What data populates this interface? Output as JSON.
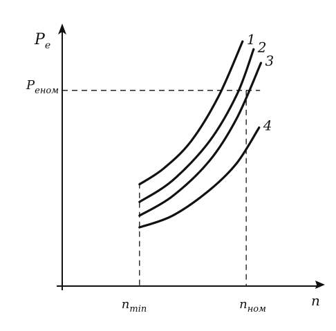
{
  "chart_data": {
    "type": "line",
    "title": "",
    "xlabel": "n",
    "ylabel": {
      "main": "P",
      "sub": "e"
    },
    "xlim": [
      0,
      1.3
    ],
    "ylim": [
      0,
      1.25
    ],
    "grid": false,
    "legend": "curve labels at right ends",
    "reference_lines": {
      "x_min": {
        "value": 0.42,
        "label_main": "n",
        "label_sub": "min"
      },
      "x_nom": {
        "value": 1.0,
        "label_main": "n",
        "label_sub": "ном"
      },
      "y_nom": {
        "value": 1.0,
        "label_main": "P",
        "label_sub": "eном"
      }
    },
    "series": [
      {
        "name": "1",
        "x": [
          0.42,
          0.55,
          0.7,
          0.85,
          0.98
        ],
        "y": [
          0.52,
          0.6,
          0.74,
          0.97,
          1.25
        ]
      },
      {
        "name": "2",
        "x": [
          0.42,
          0.6,
          0.8,
          0.95,
          1.04
        ],
        "y": [
          0.43,
          0.54,
          0.74,
          0.98,
          1.21
        ]
      },
      {
        "name": "3",
        "x": [
          0.42,
          0.6,
          0.8,
          0.95,
          1.08
        ],
        "y": [
          0.36,
          0.46,
          0.64,
          0.86,
          1.14
        ]
      },
      {
        "name": "4",
        "x": [
          0.42,
          0.6,
          0.8,
          0.95,
          1.07
        ],
        "y": [
          0.3,
          0.36,
          0.49,
          0.63,
          0.81
        ]
      }
    ]
  },
  "colors": {
    "ink": "#111111",
    "background": "#ffffff"
  }
}
